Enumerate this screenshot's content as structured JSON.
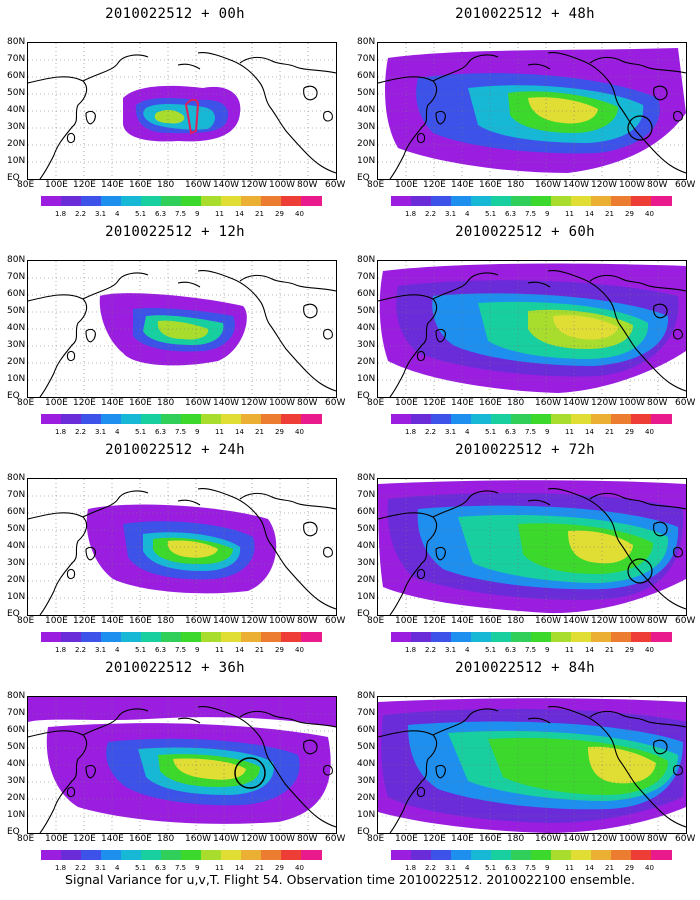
{
  "panels": [
    {
      "id": "p00",
      "title": "2010022512 + 00h"
    },
    {
      "id": "p48",
      "title": "2010022512 + 48h"
    },
    {
      "id": "p12",
      "title": "2010022512 + 12h"
    },
    {
      "id": "p60",
      "title": "2010022512 + 60h"
    },
    {
      "id": "p24",
      "title": "2010022512 + 24h"
    },
    {
      "id": "p72",
      "title": "2010022512 + 72h"
    },
    {
      "id": "p36",
      "title": "2010022512 + 36h"
    },
    {
      "id": "p84",
      "title": "2010022512 + 84h"
    }
  ],
  "lat_labels": [
    "80N",
    "70N",
    "60N",
    "50N",
    "40N",
    "30N",
    "20N",
    "10N",
    "EQ"
  ],
  "lon_labels": [
    "80E",
    "100E",
    "120E",
    "140E",
    "160E",
    "180",
    "160W",
    "140W",
    "120W",
    "100W",
    "80W",
    "60W"
  ],
  "colorbar": {
    "labels": [
      "1.8",
      "2.2",
      "3.1",
      "4",
      "5.1",
      "6.3",
      "7.5",
      "9",
      "11",
      "14",
      "21",
      "29",
      "40"
    ],
    "colors": [
      "#9b1ee0",
      "#6a2cd9",
      "#3d52e8",
      "#1e8fef",
      "#16b8d6",
      "#18cfa0",
      "#2fcf5a",
      "#3dd82c",
      "#a8dd2e",
      "#e0de35",
      "#ebb033",
      "#ec7d30",
      "#ee3c37",
      "#e81a8c"
    ]
  },
  "caption": "Signal Variance for u,v,T. Flight 54. Observation time 2010022512. 2010022100 ensemble."
}
